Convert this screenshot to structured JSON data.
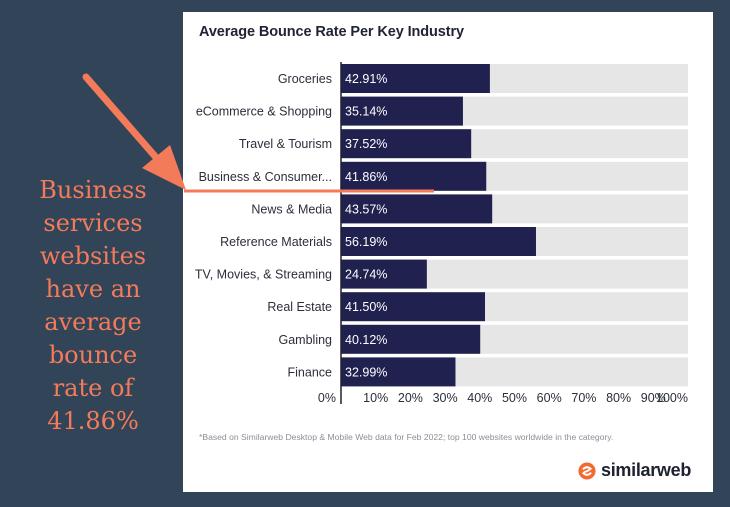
{
  "callout": {
    "lines": [
      "Business",
      "services",
      "websites",
      "have an",
      "average",
      "bounce",
      "rate of",
      "41.86%"
    ]
  },
  "colors": {
    "background": "#324458",
    "card": "#ffffff",
    "bar": "#20214f",
    "track": "#e6e6e6",
    "accent": "#f47b5a",
    "value_text": "#ffffff",
    "label_text": "#2b2f3a"
  },
  "chart_data": {
    "type": "bar",
    "orientation": "horizontal",
    "title": "Average Bounce Rate Per Key Industry",
    "categories": [
      "Groceries",
      "eCommerce & Shopping",
      "Travel & Tourism",
      "Business & Consumer...",
      "News & Media",
      "Reference Materials",
      "TV, Movies, & Streaming",
      "Real Estate",
      "Gambling",
      "Finance"
    ],
    "values": [
      42.91,
      35.14,
      37.52,
      41.86,
      43.57,
      56.19,
      24.74,
      41.5,
      40.12,
      32.99
    ],
    "value_labels": [
      "42.91%",
      "35.14%",
      "37.52%",
      "41.86%",
      "43.57%",
      "56.19%",
      "24.74%",
      "41.50%",
      "40.12%",
      "32.99%"
    ],
    "xlim": [
      0,
      100
    ],
    "xticks": [
      "0%",
      "10%",
      "20%",
      "30%",
      "40%",
      "50%",
      "60%",
      "70%",
      "80%",
      "90%",
      "100%"
    ],
    "highlighted_category": "Business & Consumer..."
  },
  "footnote": "*Based on Similarweb Desktop & Mobile Web data for Feb 2022; top 100 websites worldwide in the category.",
  "brand": {
    "name": "similarweb",
    "logo_icon": "similarweb-logo-icon"
  }
}
